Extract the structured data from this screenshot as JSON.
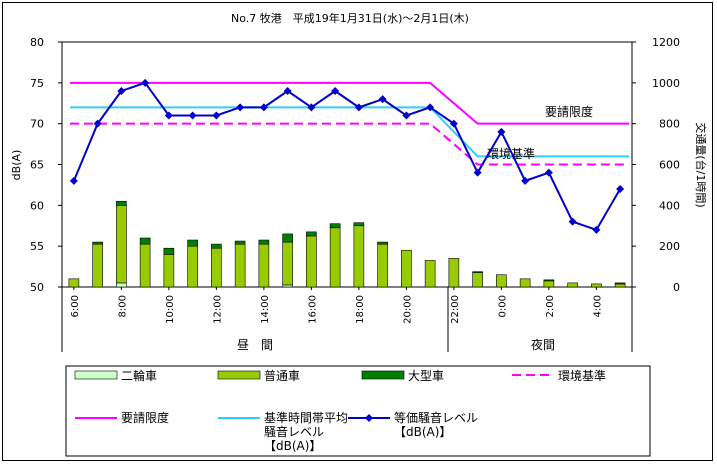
{
  "chart_data": {
    "type": "bar",
    "title": "No.7 牧港　平成19年1月31日(水)～2月1日(木)",
    "ylabel_left": "dB(A)",
    "ylabel_right": "交通量(台/1時間)",
    "ylim_left": [
      50,
      80
    ],
    "ylim_right": [
      0,
      1200
    ],
    "left_ticks": [
      "50",
      "55",
      "60",
      "65",
      "70",
      "75",
      "80"
    ],
    "right_ticks": [
      "0",
      "200",
      "400",
      "600",
      "800",
      "1000",
      "1200"
    ],
    "hours": [
      "6:00",
      "7:00",
      "8:00",
      "9:00",
      "10:00",
      "11:00",
      "12:00",
      "13:00",
      "14:00",
      "15:00",
      "16:00",
      "17:00",
      "18:00",
      "19:00",
      "20:00",
      "21:00",
      "22:00",
      "23:00",
      "0:00",
      "1:00",
      "2:00",
      "3:00",
      "4:00",
      "5:00"
    ],
    "x_tick_labels": [
      "6:00",
      "8:00",
      "10:00",
      "12:00",
      "14:00",
      "16:00",
      "18:00",
      "20:00",
      "22:00",
      "0:00",
      "2:00",
      "4:00"
    ],
    "period_labels": {
      "day": "昼　間",
      "night": "夜間"
    },
    "series": [
      {
        "name": "二輪車",
        "color": "#ccffcc",
        "values": [
          0,
          0,
          20,
          0,
          0,
          0,
          0,
          0,
          0,
          10,
          0,
          0,
          0,
          0,
          0,
          0,
          0,
          0,
          0,
          0,
          0,
          0,
          0,
          0
        ]
      },
      {
        "name": "普通車",
        "color": "#99cc00",
        "values": [
          40,
          210,
          380,
          210,
          160,
          200,
          190,
          210,
          210,
          210,
          250,
          290,
          300,
          210,
          180,
          130,
          140,
          70,
          60,
          40,
          30,
          20,
          15,
          15
        ]
      },
      {
        "name": "大型車",
        "color": "#008000",
        "values": [
          0,
          10,
          20,
          30,
          30,
          30,
          20,
          15,
          20,
          40,
          20,
          20,
          15,
          10,
          0,
          0,
          0,
          5,
          0,
          0,
          5,
          0,
          0,
          5
        ]
      },
      {
        "name": "等価騒音レベル\n【dB(A)】",
        "color": "#0000cc",
        "values": [
          63,
          70,
          74,
          75,
          71,
          71,
          71,
          72,
          72,
          74,
          72,
          74,
          72,
          73,
          71,
          72,
          70,
          64,
          69,
          63,
          64,
          58,
          57,
          62
        ]
      }
    ],
    "reference_lines": [
      {
        "name": "要請限度",
        "label": "要請限度",
        "color": "#ff00ff",
        "day": 75,
        "night": 70
      },
      {
        "name": "基準時間帯平均\n騒音レベル\n【dB(A)】",
        "color": "#33ccff",
        "day": 72,
        "night": 66
      },
      {
        "name": "環境基準",
        "label": "環境基準",
        "color": "#ff00ff",
        "dashed": true,
        "day": 70,
        "night": 65
      }
    ],
    "legend": {
      "row1": [
        "二輪車",
        "普通車",
        "大型車",
        "環境基準"
      ],
      "row2": [
        "要請限度",
        "基準時間帯平均\n騒音レベル\n【dB(A)】",
        "等価騒音レベル\n【dB(A)】"
      ]
    },
    "legend_position": "bottom",
    "grid": false
  }
}
